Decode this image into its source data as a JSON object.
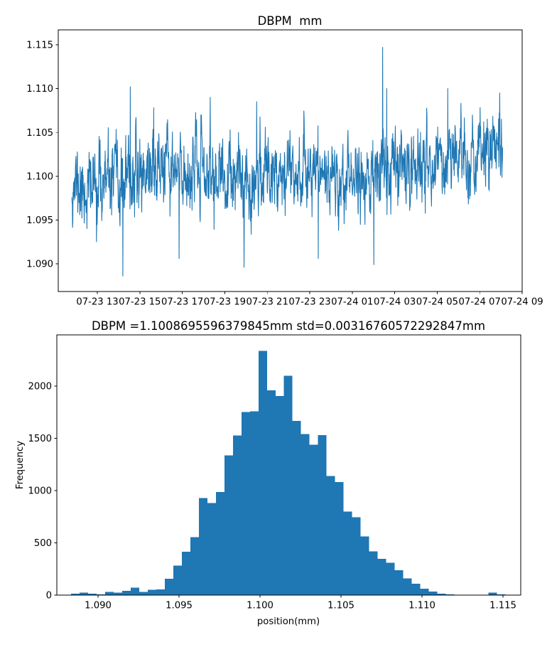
{
  "figure": {
    "background": "#ffffff",
    "series_color": "#1f77b4",
    "axis_color": "#000000",
    "text_color": "#000000"
  },
  "chart_data": [
    {
      "id": "timeseries",
      "type": "line",
      "title": "DBPM  mm",
      "x_tick_labels": [
        "07-23 13",
        "07-23 15",
        "07-23 17",
        "07-23 19",
        "07-23 21",
        "07-23 23",
        "07-24 01",
        "07-24 03",
        "07-24 05",
        "07-24 07",
        "07-24 09"
      ],
      "x_tick_hours": [
        13,
        15,
        17,
        19,
        21,
        23,
        25,
        27,
        29,
        31,
        33
      ],
      "y_tick_labels": [
        "1.090",
        "1.095",
        "1.100",
        "1.105",
        "1.110",
        "1.115"
      ],
      "y_tick_values": [
        1.09,
        1.095,
        1.1,
        1.105,
        1.11,
        1.115
      ],
      "xlim_hours_from_0723_00": [
        11.16,
        33.0
      ],
      "ylim": [
        1.08683,
        1.1167
      ],
      "grid": false,
      "legend": null,
      "series_model": {
        "seed": 11,
        "n_points": 1800,
        "t_start": 11.8,
        "t_end": 32.08,
        "ar_coeff": 0.55,
        "noise_sigma": 0.00185,
        "clamp": 0.0065,
        "drift_keyframes": [
          [
            11.8,
            1.0997
          ],
          [
            12.3,
            1.0983
          ],
          [
            13.2,
            1.0992
          ],
          [
            14.0,
            1.0988
          ],
          [
            15.0,
            1.1005
          ],
          [
            15.8,
            1.1012
          ],
          [
            16.8,
            1.1
          ],
          [
            17.6,
            1.1008
          ],
          [
            18.6,
            1.0997
          ],
          [
            19.4,
            1.099
          ],
          [
            20.4,
            1.1
          ],
          [
            21.5,
            1.1012
          ],
          [
            22.6,
            1.101
          ],
          [
            23.6,
            1.1006
          ],
          [
            24.4,
            1.0996
          ],
          [
            25.4,
            1.1
          ],
          [
            26.3,
            1.0998
          ],
          [
            27.2,
            1.1014
          ],
          [
            28.2,
            1.1018
          ],
          [
            29.2,
            1.102
          ],
          [
            30.2,
            1.1018
          ],
          [
            31.2,
            1.1024
          ],
          [
            31.9,
            1.1032
          ],
          [
            32.08,
            1.104
          ]
        ],
        "events": [
          [
            14.2,
            1.0886
          ],
          [
            14.55,
            1.1102
          ],
          [
            15.65,
            1.1078
          ],
          [
            16.85,
            1.0906
          ],
          [
            18.32,
            1.109
          ],
          [
            19.9,
            1.0896
          ],
          [
            20.5,
            1.1085
          ],
          [
            23.4,
            1.0906
          ],
          [
            26.02,
            1.0899
          ],
          [
            26.43,
            1.1147
          ],
          [
            26.62,
            1.11
          ],
          [
            29.5,
            1.11
          ],
          [
            31.95,
            1.1095
          ]
        ],
        "data_min": 1.0886,
        "data_max": 1.1147
      }
    },
    {
      "id": "histogram",
      "type": "bar",
      "title": "DBPM =1.1008695596379845mm std=0.00316760572292847mm",
      "mean_mm": "1.1008695596379845",
      "std_mm": "0.00316760572292847",
      "xlabel": "position(mm)",
      "ylabel": "Frequency",
      "x_tick_labels": [
        "1.090",
        "1.095",
        "1.100",
        "1.105",
        "1.110",
        "1.115"
      ],
      "x_tick_values": [
        1.09,
        1.095,
        1.1,
        1.105,
        1.11,
        1.115
      ],
      "y_tick_labels": [
        "0",
        "500",
        "1000",
        "1500",
        "2000"
      ],
      "y_tick_values": [
        0,
        500,
        1000,
        1500,
        2000
      ],
      "xlim": [
        1.08746,
        1.1161
      ],
      "ylim": [
        0,
        2490
      ],
      "grid": false,
      "bin_start": 1.08833,
      "bin_width": 0.000526,
      "counts": [
        15,
        25,
        12,
        8,
        30,
        25,
        42,
        70,
        30,
        50,
        55,
        155,
        282,
        415,
        556,
        929,
        880,
        985,
        1337,
        1528,
        1753,
        1760,
        2337,
        1960,
        1905,
        2100,
        1668,
        1542,
        1440,
        1532,
        1140,
        1080,
        800,
        745,
        560,
        420,
        348,
        310,
        238,
        160,
        108,
        60,
        35,
        12,
        8,
        5,
        2,
        3,
        2,
        25,
        8
      ]
    }
  ]
}
